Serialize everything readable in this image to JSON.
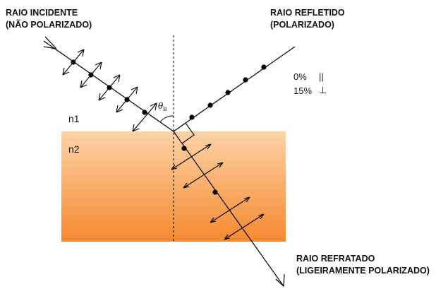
{
  "labels": {
    "incident_line1": "RAIO INCIDENTE",
    "incident_line2": "(NÃO POLARIZADO)",
    "reflected_line1": "RAIO REFLETIDO",
    "reflected_line2": "(POLARIZADO)",
    "refracted_line1": "RAIO REFRATADO",
    "refracted_line2": "(LIGEIRAMENTE POLARIZADO)"
  },
  "media": {
    "top": "n1",
    "bottom": "n2"
  },
  "angle": {
    "symbol": "θ",
    "subscript": "B"
  },
  "polarization": {
    "parallel_value": "0%",
    "parallel_symbol": "||",
    "perpendicular_value": "15%",
    "perpendicular_symbol": "⊥"
  },
  "colors": {
    "medium_top": "#fdd3a6",
    "medium_bottom": "#f4892e",
    "line": "#000000"
  }
}
